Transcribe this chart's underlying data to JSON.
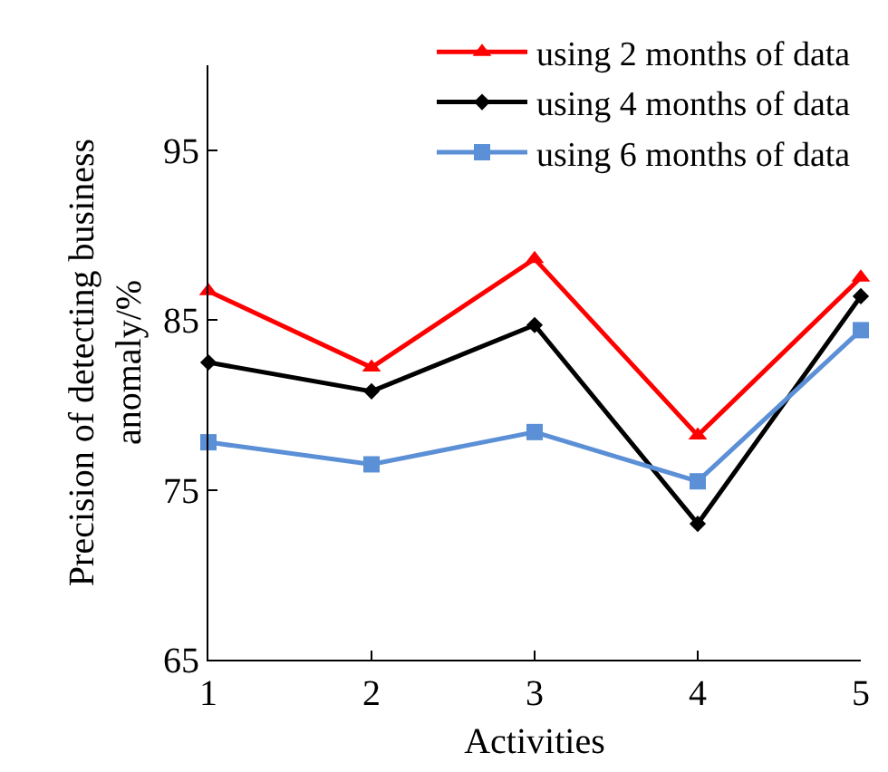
{
  "chart_data": {
    "type": "line",
    "xlabel": "Activities",
    "ylabel": "Precision of detecting business anomaly/%",
    "x": [
      1,
      2,
      3,
      4,
      5
    ],
    "series": [
      {
        "name": "using 2 months of data",
        "color": "#ff0000",
        "marker": "triangle",
        "values": [
          86.7,
          82.2,
          88.6,
          78.2,
          87.5
        ]
      },
      {
        "name": "using 4 months of data",
        "color": "#000000",
        "marker": "diamond",
        "values": [
          82.5,
          80.8,
          84.7,
          73.0,
          86.4
        ]
      },
      {
        "name": "using 6 months of data",
        "color": "#5b8fd6",
        "marker": "square",
        "values": [
          77.8,
          76.5,
          78.4,
          75.5,
          84.4
        ]
      }
    ],
    "xlim": [
      1,
      5
    ],
    "xticks": [
      1,
      2,
      3,
      4,
      5
    ],
    "ylim": [
      65,
      100
    ],
    "yticks": [
      65,
      75,
      85,
      95
    ],
    "legend": "top right",
    "line_style": "solid"
  }
}
